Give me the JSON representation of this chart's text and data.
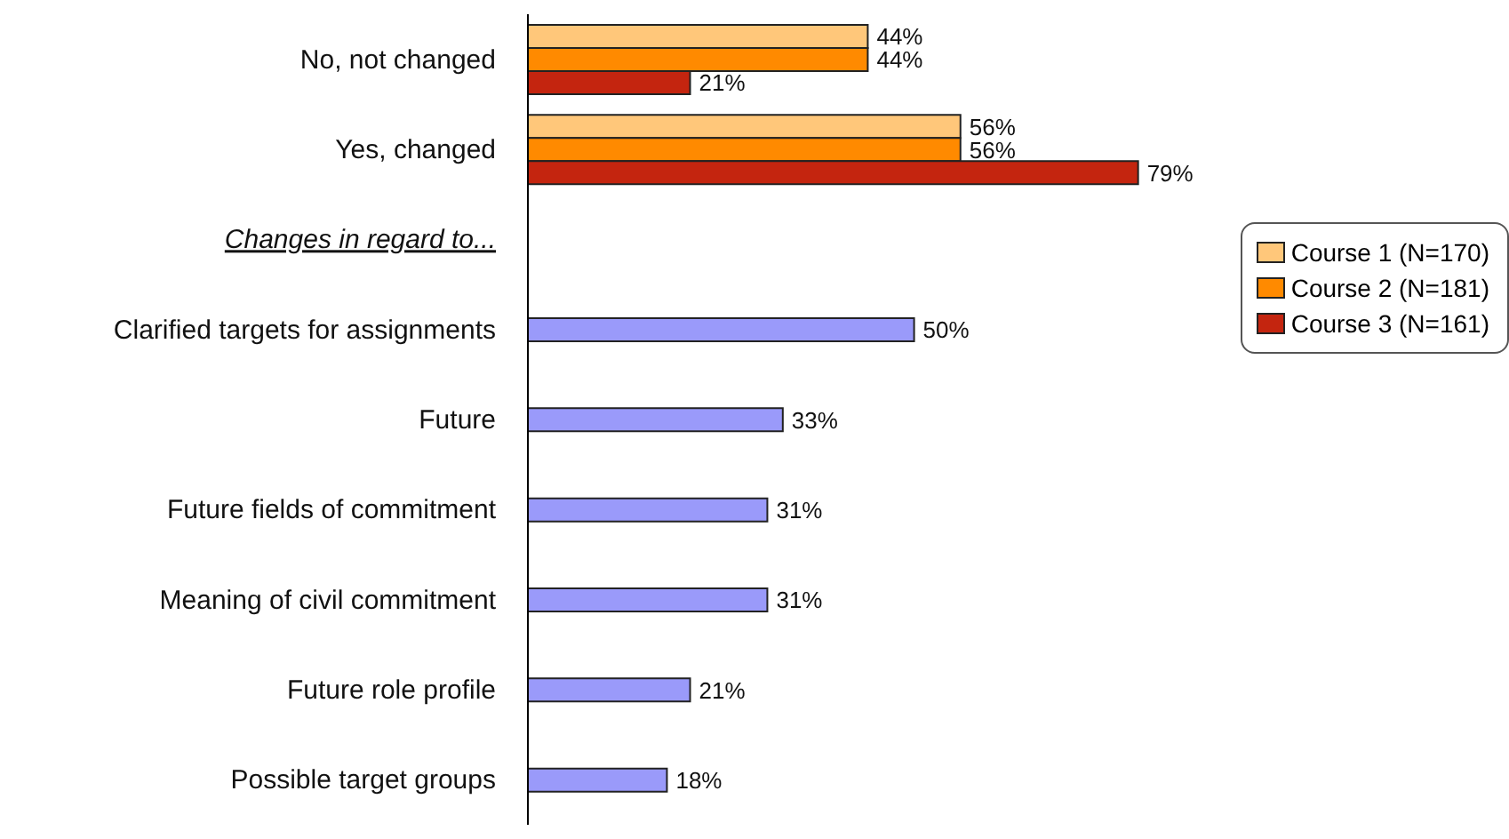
{
  "chart_data": {
    "type": "bar",
    "orientation": "horizontal",
    "legend": "top right",
    "categories": [
      "No, not changed",
      "Yes, changed",
      "Changes in regard to...",
      "Clarified targets for assignments",
      "Future",
      "Future fields of commitment",
      "Meaning of civil commitment",
      "Future role profile",
      "Possible target groups"
    ],
    "series": [
      {
        "name": "Course 1 (N=170)",
        "color": "#ffc77a",
        "values": [
          44,
          56,
          null,
          null,
          null,
          null,
          null,
          null,
          null
        ],
        "value_labels": [
          "44%",
          "56%",
          null,
          null,
          null,
          null,
          null,
          null,
          null
        ]
      },
      {
        "name": "Course 2 (N=181)",
        "color": "#ff8a00",
        "values": [
          44,
          56,
          null,
          null,
          null,
          null,
          null,
          null,
          null
        ],
        "value_labels": [
          "44%",
          "56%",
          null,
          null,
          null,
          null,
          null,
          null,
          null
        ]
      },
      {
        "name": "Course 3 (N=161)",
        "color": "#c4250f",
        "values": [
          21,
          79,
          null,
          null,
          null,
          null,
          null,
          null,
          null
        ],
        "value_labels": [
          "21%",
          "79%",
          null,
          null,
          null,
          null,
          null,
          null,
          null
        ]
      },
      {
        "color": "#9a9afa",
        "values": [
          null,
          null,
          null,
          50,
          33,
          31,
          31,
          21,
          18
        ],
        "value_labels": [
          null,
          null,
          null,
          "50%",
          "33%",
          "31%",
          "31%",
          "21%",
          "18%"
        ]
      }
    ]
  }
}
